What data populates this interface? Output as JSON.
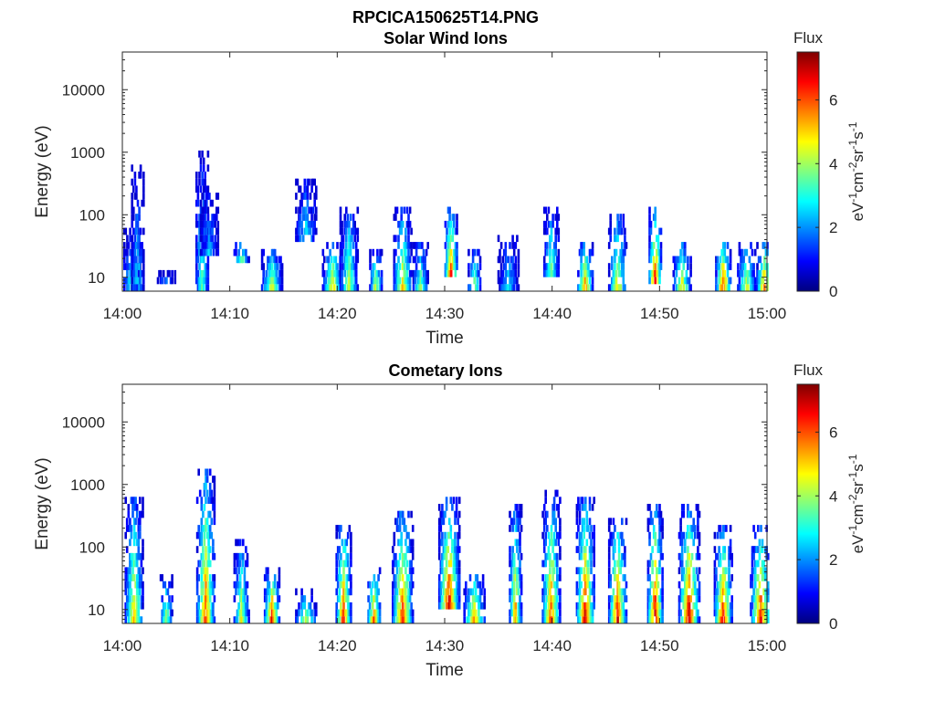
{
  "figure": {
    "filename": "RPCICA150625T14.PNG"
  },
  "chart_data": [
    {
      "type": "heatmap",
      "title": "Solar Wind Ions",
      "xlabel": "Time",
      "ylabel": "Energy (eV)",
      "x_ticks": [
        "14:00",
        "14:10",
        "14:20",
        "14:30",
        "14:40",
        "14:50",
        "15:00"
      ],
      "xlim": [
        "14:00",
        "15:00"
      ],
      "y_scale": "log",
      "y_ticks": [
        10,
        100,
        1000,
        10000
      ],
      "y_tick_labels": [
        "10",
        "100",
        "1000",
        "10000"
      ],
      "ylim": [
        6,
        40000
      ],
      "colorbar": {
        "title": "Flux",
        "label": "eV-1cm-2sr-1s-1",
        "range": [
          0,
          7.5
        ],
        "ticks": [
          "0",
          "2",
          "4",
          "6"
        ],
        "colormap": "jet"
      },
      "grid": false,
      "bursts": [
        {
          "t": "14:00:45",
          "e_min": 6,
          "e_max": 60,
          "peak": 3.2
        },
        {
          "t": "14:01:20",
          "e_min": 6,
          "e_max": 600,
          "peak": 2.8
        },
        {
          "t": "14:04:00",
          "e_min": 7,
          "e_max": 12,
          "peak": 2.5
        },
        {
          "t": "14:07:20",
          "e_min": 6,
          "e_max": 1000,
          "peak": 3.8
        },
        {
          "t": "14:08:00",
          "e_min": 20,
          "e_max": 300,
          "peak": 2.5
        },
        {
          "t": "14:11:00",
          "e_min": 15,
          "e_max": 40,
          "peak": 4.8
        },
        {
          "t": "14:13:50",
          "e_min": 6,
          "e_max": 30,
          "peak": 5.0
        },
        {
          "t": "14:17:00",
          "e_min": 40,
          "e_max": 400,
          "peak": 3.0
        },
        {
          "t": "14:19:30",
          "e_min": 6,
          "e_max": 40,
          "peak": 5.2
        },
        {
          "t": "14:21:00",
          "e_min": 6,
          "e_max": 150,
          "peak": 4.6
        },
        {
          "t": "14:23:30",
          "e_min": 6,
          "e_max": 30,
          "peak": 4.8
        },
        {
          "t": "14:26:00",
          "e_min": 6,
          "e_max": 120,
          "peak": 5.4
        },
        {
          "t": "14:27:40",
          "e_min": 6,
          "e_max": 40,
          "peak": 4.0
        },
        {
          "t": "14:30:30",
          "e_min": 10,
          "e_max": 150,
          "peak": 6.6
        },
        {
          "t": "14:32:40",
          "e_min": 6,
          "e_max": 30,
          "peak": 4.8
        },
        {
          "t": "14:35:50",
          "e_min": 6,
          "e_max": 50,
          "peak": 3.0
        },
        {
          "t": "14:39:50",
          "e_min": 10,
          "e_max": 150,
          "peak": 4.0
        },
        {
          "t": "14:43:00",
          "e_min": 6,
          "e_max": 40,
          "peak": 6.3
        },
        {
          "t": "14:46:00",
          "e_min": 6,
          "e_max": 100,
          "peak": 5.2
        },
        {
          "t": "14:49:30",
          "e_min": 8,
          "e_max": 120,
          "peak": 7.0
        },
        {
          "t": "14:52:00",
          "e_min": 6,
          "e_max": 40,
          "peak": 5.4
        },
        {
          "t": "14:55:50",
          "e_min": 6,
          "e_max": 40,
          "peak": 6.9
        },
        {
          "t": "14:58:00",
          "e_min": 6,
          "e_max": 40,
          "peak": 5.0
        },
        {
          "t": "14:59:40",
          "e_min": 6,
          "e_max": 40,
          "peak": 6.2
        }
      ]
    },
    {
      "type": "heatmap",
      "title": "Cometary Ions",
      "xlabel": "Time",
      "ylabel": "Energy (eV)",
      "x_ticks": [
        "14:00",
        "14:10",
        "14:20",
        "14:30",
        "14:40",
        "14:50",
        "15:00"
      ],
      "xlim": [
        "14:00",
        "15:00"
      ],
      "y_scale": "log",
      "y_ticks": [
        10,
        100,
        1000,
        10000
      ],
      "y_tick_labels": [
        "10",
        "100",
        "1000",
        "10000"
      ],
      "ylim": [
        6,
        40000
      ],
      "colorbar": {
        "title": "Flux",
        "label": "eV-1cm-2sr-1s-1",
        "range": [
          0,
          7.5
        ],
        "ticks": [
          "0",
          "2",
          "4",
          "6"
        ],
        "colormap": "jet"
      },
      "grid": false,
      "bursts": [
        {
          "t": "14:01:00",
          "e_min": 6,
          "e_max": 700,
          "peak": 5.4
        },
        {
          "t": "14:04:00",
          "e_min": 6,
          "e_max": 40,
          "peak": 4.2
        },
        {
          "t": "14:07:40",
          "e_min": 6,
          "e_max": 1600,
          "peak": 6.5
        },
        {
          "t": "14:11:00",
          "e_min": 6,
          "e_max": 150,
          "peak": 4.8
        },
        {
          "t": "14:13:50",
          "e_min": 6,
          "e_max": 50,
          "peak": 6.9
        },
        {
          "t": "14:17:00",
          "e_min": 6,
          "e_max": 20,
          "peak": 5.0
        },
        {
          "t": "14:20:30",
          "e_min": 6,
          "e_max": 250,
          "peak": 6.8
        },
        {
          "t": "14:23:20",
          "e_min": 6,
          "e_max": 50,
          "peak": 6.6
        },
        {
          "t": "14:26:00",
          "e_min": 6,
          "e_max": 400,
          "peak": 6.7
        },
        {
          "t": "14:30:20",
          "e_min": 10,
          "e_max": 600,
          "peak": 7.2
        },
        {
          "t": "14:32:40",
          "e_min": 6,
          "e_max": 40,
          "peak": 6.0
        },
        {
          "t": "14:36:30",
          "e_min": 6,
          "e_max": 500,
          "peak": 5.8
        },
        {
          "t": "14:39:50",
          "e_min": 6,
          "e_max": 800,
          "peak": 6.4
        },
        {
          "t": "14:43:00",
          "e_min": 6,
          "e_max": 600,
          "peak": 7.2
        },
        {
          "t": "14:46:00",
          "e_min": 6,
          "e_max": 300,
          "peak": 6.9
        },
        {
          "t": "14:49:30",
          "e_min": 6,
          "e_max": 500,
          "peak": 7.3
        },
        {
          "t": "14:52:40",
          "e_min": 6,
          "e_max": 500,
          "peak": 7.2
        },
        {
          "t": "14:55:50",
          "e_min": 6,
          "e_max": 200,
          "peak": 7.1
        },
        {
          "t": "14:59:20",
          "e_min": 6,
          "e_max": 200,
          "peak": 7.0
        }
      ]
    }
  ]
}
